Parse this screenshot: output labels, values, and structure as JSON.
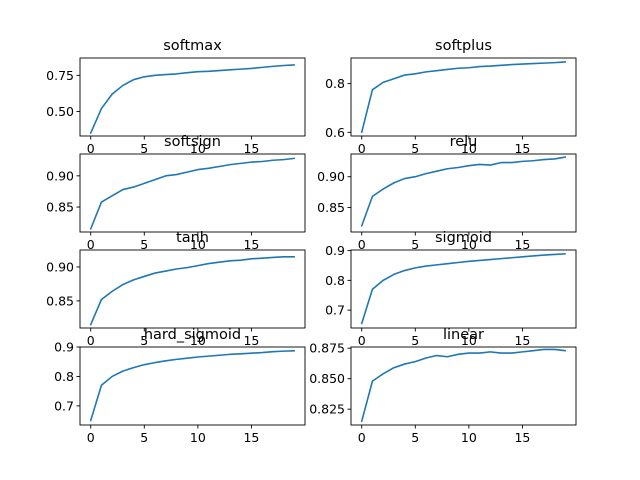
{
  "figure": {
    "background": "#ffffff",
    "line_color": "#1f77b4"
  },
  "chart_data": [
    {
      "type": "line",
      "title": "softmax",
      "xlabel": "",
      "ylabel": "",
      "xlim": [
        -1,
        20
      ],
      "ylim": [
        0.33,
        0.87
      ],
      "xticks": [
        0,
        5,
        10,
        15
      ],
      "xtick_labels": [
        "0",
        "5",
        "10",
        "15"
      ],
      "yticks": [
        0.5,
        0.75
      ],
      "ytick_labels": [
        "0.50",
        "0.75"
      ],
      "x": [
        0,
        1,
        2,
        3,
        4,
        5,
        6,
        7,
        8,
        9,
        10,
        11,
        12,
        13,
        14,
        15,
        16,
        17,
        18,
        19
      ],
      "values": [
        0.35,
        0.52,
        0.62,
        0.68,
        0.72,
        0.74,
        0.75,
        0.755,
        0.76,
        0.768,
        0.775,
        0.778,
        0.783,
        0.788,
        0.793,
        0.798,
        0.805,
        0.812,
        0.818,
        0.822
      ]
    },
    {
      "type": "line",
      "title": "softplus",
      "xlabel": "",
      "ylabel": "",
      "xlim": [
        -1,
        20
      ],
      "ylim": [
        0.585,
        0.905
      ],
      "xticks": [
        0,
        5,
        10,
        15
      ],
      "xtick_labels": [
        "0",
        "5",
        "10",
        "15"
      ],
      "yticks": [
        0.6,
        0.8
      ],
      "ytick_labels": [
        "0.6",
        "0.8"
      ],
      "x": [
        0,
        1,
        2,
        3,
        4,
        5,
        6,
        7,
        8,
        9,
        10,
        11,
        12,
        13,
        14,
        15,
        16,
        17,
        18,
        19
      ],
      "values": [
        0.6,
        0.775,
        0.805,
        0.82,
        0.835,
        0.84,
        0.848,
        0.853,
        0.858,
        0.863,
        0.865,
        0.87,
        0.872,
        0.875,
        0.878,
        0.88,
        0.882,
        0.884,
        0.886,
        0.889
      ]
    },
    {
      "type": "line",
      "title": "softsign",
      "xlabel": "",
      "ylabel": "",
      "xlim": [
        -1,
        20
      ],
      "ylim": [
        0.81,
        0.935
      ],
      "xticks": [
        0,
        5,
        10,
        15
      ],
      "xtick_labels": [
        "0",
        "5",
        "10",
        "15"
      ],
      "yticks": [
        0.85,
        0.9
      ],
      "ytick_labels": [
        "0.85",
        "0.90"
      ],
      "x": [
        0,
        1,
        2,
        3,
        4,
        5,
        6,
        7,
        8,
        9,
        10,
        11,
        12,
        13,
        14,
        15,
        16,
        17,
        18,
        19
      ],
      "values": [
        0.815,
        0.858,
        0.868,
        0.878,
        0.882,
        0.888,
        0.894,
        0.9,
        0.902,
        0.906,
        0.91,
        0.912,
        0.915,
        0.918,
        0.92,
        0.922,
        0.923,
        0.925,
        0.926,
        0.928
      ]
    },
    {
      "type": "line",
      "title": "relu",
      "xlabel": "",
      "ylabel": "",
      "xlim": [
        -1,
        20
      ],
      "ylim": [
        0.81,
        0.937
      ],
      "xticks": [
        0,
        5,
        10,
        15
      ],
      "xtick_labels": [
        "0",
        "5",
        "10",
        "15"
      ],
      "yticks": [
        0.85,
        0.9
      ],
      "ytick_labels": [
        "0.85",
        "0.90"
      ],
      "x": [
        0,
        1,
        2,
        3,
        4,
        5,
        6,
        7,
        8,
        9,
        10,
        11,
        12,
        13,
        14,
        15,
        16,
        17,
        18,
        19
      ],
      "values": [
        0.82,
        0.868,
        0.88,
        0.89,
        0.897,
        0.9,
        0.905,
        0.909,
        0.913,
        0.915,
        0.918,
        0.92,
        0.919,
        0.923,
        0.923,
        0.925,
        0.926,
        0.928,
        0.929,
        0.932
      ]
    },
    {
      "type": "line",
      "title": "tanh",
      "xlabel": "",
      "ylabel": "",
      "xlim": [
        -1,
        20
      ],
      "ylim": [
        0.81,
        0.925
      ],
      "xticks": [
        0,
        5,
        10,
        15
      ],
      "xtick_labels": [
        "0",
        "5",
        "10",
        "15"
      ],
      "yticks": [
        0.85,
        0.9
      ],
      "ytick_labels": [
        "0.85",
        "0.90"
      ],
      "x": [
        0,
        1,
        2,
        3,
        4,
        5,
        6,
        7,
        8,
        9,
        10,
        11,
        12,
        13,
        14,
        15,
        16,
        17,
        18,
        19
      ],
      "values": [
        0.815,
        0.852,
        0.864,
        0.874,
        0.881,
        0.886,
        0.891,
        0.894,
        0.897,
        0.899,
        0.902,
        0.905,
        0.907,
        0.909,
        0.91,
        0.912,
        0.913,
        0.914,
        0.915,
        0.915
      ]
    },
    {
      "type": "line",
      "title": "sigmoid",
      "xlabel": "",
      "ylabel": "",
      "xlim": [
        -1,
        20
      ],
      "ylim": [
        0.64,
        0.902
      ],
      "xticks": [
        0,
        5,
        10,
        15
      ],
      "xtick_labels": [
        "0",
        "5",
        "10",
        "15"
      ],
      "yticks": [
        0.7,
        0.8,
        0.9
      ],
      "ytick_labels": [
        "0.7",
        "0.8",
        "0.9"
      ],
      "x": [
        0,
        1,
        2,
        3,
        4,
        5,
        6,
        7,
        8,
        9,
        10,
        11,
        12,
        13,
        14,
        15,
        16,
        17,
        18,
        19
      ],
      "values": [
        0.655,
        0.77,
        0.8,
        0.82,
        0.833,
        0.842,
        0.848,
        0.852,
        0.856,
        0.86,
        0.864,
        0.867,
        0.87,
        0.873,
        0.876,
        0.879,
        0.882,
        0.885,
        0.887,
        0.889
      ]
    },
    {
      "type": "line",
      "title": "hard_sigmoid",
      "xlabel": "",
      "ylabel": "",
      "xlim": [
        -1,
        20
      ],
      "ylim": [
        0.635,
        0.9
      ],
      "xticks": [
        0,
        5,
        10,
        15
      ],
      "xtick_labels": [
        "0",
        "5",
        "10",
        "15"
      ],
      "yticks": [
        0.7,
        0.8,
        0.9
      ],
      "ytick_labels": [
        "0.7",
        "0.8",
        "0.9"
      ],
      "x": [
        0,
        1,
        2,
        3,
        4,
        5,
        6,
        7,
        8,
        9,
        10,
        11,
        12,
        13,
        14,
        15,
        16,
        17,
        18,
        19
      ],
      "values": [
        0.65,
        0.77,
        0.8,
        0.818,
        0.83,
        0.84,
        0.847,
        0.853,
        0.858,
        0.862,
        0.866,
        0.869,
        0.872,
        0.875,
        0.877,
        0.879,
        0.881,
        0.884,
        0.886,
        0.887
      ]
    },
    {
      "type": "line",
      "title": "linear",
      "xlabel": "",
      "ylabel": "",
      "xlim": [
        -1,
        20
      ],
      "ylim": [
        0.812,
        0.876
      ],
      "xticks": [
        0,
        5,
        10,
        15
      ],
      "xtick_labels": [
        "0",
        "5",
        "10",
        "15"
      ],
      "yticks": [
        0.825,
        0.85,
        0.875
      ],
      "ytick_labels": [
        "0.825",
        "0.850",
        "0.875"
      ],
      "x": [
        0,
        1,
        2,
        3,
        4,
        5,
        6,
        7,
        8,
        9,
        10,
        11,
        12,
        13,
        14,
        15,
        16,
        17,
        18,
        19
      ],
      "values": [
        0.815,
        0.848,
        0.854,
        0.859,
        0.862,
        0.864,
        0.867,
        0.869,
        0.868,
        0.87,
        0.871,
        0.871,
        0.872,
        0.871,
        0.871,
        0.872,
        0.873,
        0.874,
        0.874,
        0.873
      ]
    }
  ]
}
